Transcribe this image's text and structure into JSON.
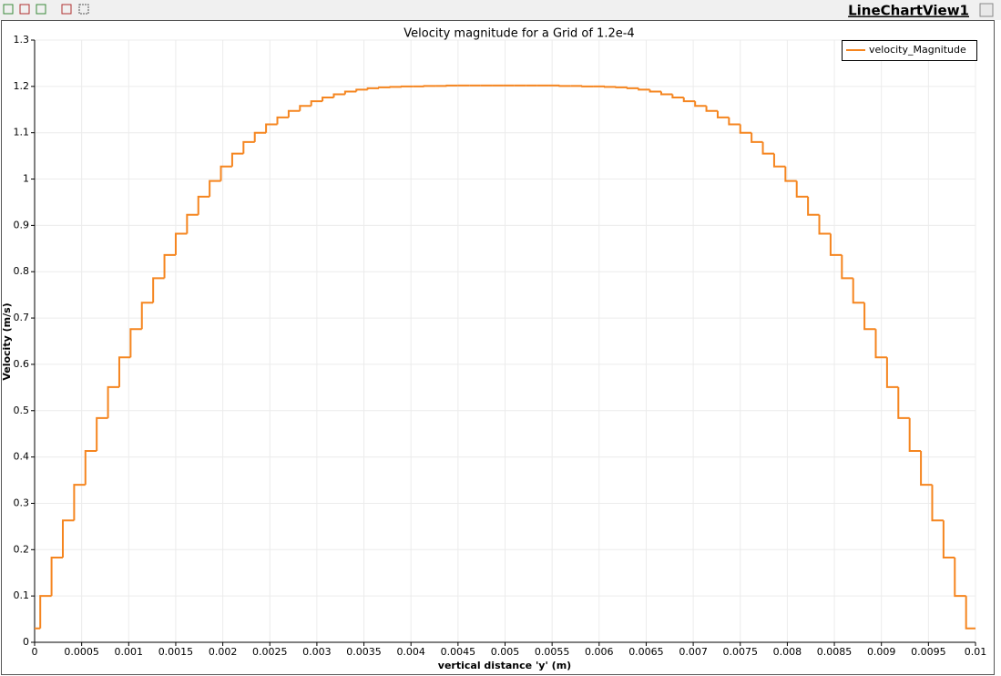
{
  "view": {
    "label": "LineChartView1"
  },
  "chart_data": {
    "type": "step",
    "title": "Velocity magnitude for a Grid of 1.2e-4",
    "x_label": "vertical distance 'y' (m)",
    "y_label": "Velocity (m/s)",
    "xlim": [
      0,
      0.01
    ],
    "ylim": [
      0,
      1.3
    ],
    "xticks": [
      0,
      0.0005,
      0.001,
      0.0015,
      0.002,
      0.0025,
      0.003,
      0.0035,
      0.004,
      0.0045,
      0.005,
      0.0055,
      0.006,
      0.0065,
      0.007,
      0.0075,
      0.008,
      0.0085,
      0.009,
      0.0095,
      0.01
    ],
    "yticks": [
      0,
      0.1,
      0.2,
      0.3,
      0.4,
      0.5,
      0.6,
      0.7,
      0.8,
      0.9,
      1,
      1.1,
      1.2,
      1.3
    ],
    "grid": true,
    "legend": "upper right",
    "x": [
      0,
      6e-05,
      0.00018,
      0.0003,
      0.00042,
      0.00054,
      0.00066,
      0.00078,
      0.0009,
      0.00102,
      0.00114,
      0.00126,
      0.00138,
      0.0015,
      0.00162,
      0.00174,
      0.00186,
      0.00198,
      0.0021,
      0.00222,
      0.00234,
      0.00246,
      0.00258,
      0.0027,
      0.00282,
      0.00294,
      0.00306,
      0.00318,
      0.0033,
      0.00342,
      0.00354,
      0.00366,
      0.00378,
      0.0039,
      0.00402,
      0.00414,
      0.00426,
      0.00438,
      0.0045,
      0.00462,
      0.00474,
      0.00486,
      0.00498,
      0.0051,
      0.00522,
      0.00534,
      0.00546,
      0.00558,
      0.0057,
      0.00582,
      0.00594,
      0.00606,
      0.00618,
      0.0063,
      0.00642,
      0.00654,
      0.00666,
      0.00678,
      0.0069,
      0.00702,
      0.00714,
      0.00726,
      0.00738,
      0.0075,
      0.00762,
      0.00774,
      0.00786,
      0.00798,
      0.0081,
      0.00822,
      0.00834,
      0.00846,
      0.00858,
      0.0087,
      0.00882,
      0.00894,
      0.00906,
      0.00918,
      0.0093,
      0.00942,
      0.00954,
      0.00966,
      0.00978,
      0.0099
    ],
    "series": [
      {
        "name": "velocity_Magnitude",
        "color": "#f5851f",
        "values": [
          0.03,
          0.1,
          0.183,
          0.263,
          0.34,
          0.413,
          0.484,
          0.551,
          0.615,
          0.676,
          0.733,
          0.786,
          0.836,
          0.882,
          0.923,
          0.962,
          0.996,
          1.027,
          1.055,
          1.08,
          1.1,
          1.118,
          1.133,
          1.147,
          1.158,
          1.168,
          1.176,
          1.183,
          1.189,
          1.193,
          1.196,
          1.198,
          1.199,
          1.2,
          1.2,
          1.201,
          1.201,
          1.202,
          1.202,
          1.202,
          1.202,
          1.202,
          1.202,
          1.202,
          1.202,
          1.202,
          1.202,
          1.201,
          1.201,
          1.2,
          1.2,
          1.199,
          1.198,
          1.196,
          1.193,
          1.189,
          1.183,
          1.176,
          1.168,
          1.158,
          1.147,
          1.133,
          1.118,
          1.1,
          1.08,
          1.055,
          1.027,
          0.996,
          0.962,
          0.923,
          0.882,
          0.836,
          0.786,
          0.733,
          0.676,
          0.615,
          0.551,
          0.484,
          0.413,
          0.34,
          0.263,
          0.183,
          0.1,
          0.03
        ]
      }
    ]
  }
}
